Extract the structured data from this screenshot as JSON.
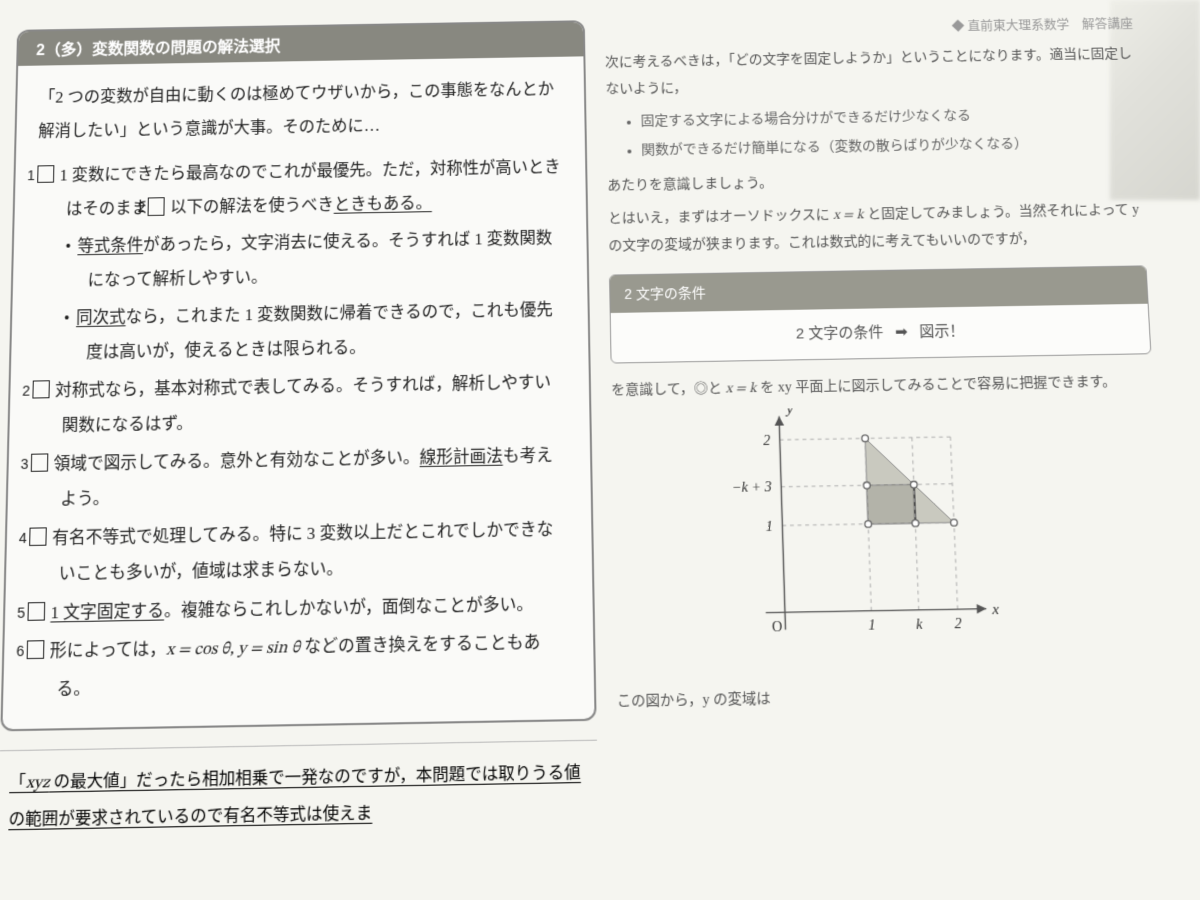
{
  "left": {
    "header": "2（多）変数関数の問題の解法選択",
    "lead1": "「2 つの変数が自由に動くのは極めてウザいから，この事態をなんとか解消したい」という意識が大事。そのために…",
    "items": [
      {
        "num": "1",
        "text_a": "1 変数にできたら最高なのでこれが最優先。ただ，対称性が高いときはそのまま",
        "text_b": "以下の解法を使うべきときもある。",
        "ref": "2",
        "ul_end": "ときもある。"
      },
      {
        "sub": true,
        "ul": "等式条件",
        "rest": "があったら，文字消去に使える。そうすれば 1 変数関数になって解析しやすい。"
      },
      {
        "sub": true,
        "ul": "同次式",
        "rest": "なら，これまた 1 変数関数に帰着できるので，これも優先度は高いが，使えるときは限られる。"
      },
      {
        "num": "2",
        "text": "対称式なら，基本対称式で表してみる。そうすれば，解析しやすい関数になるはず。"
      },
      {
        "num": "3",
        "text_a": "領域で図示してみる。意外と有効なことが多い。",
        "ul_tail": "線形計画法",
        "text_b": "も考えよう。"
      },
      {
        "num": "4",
        "text": "有名不等式で処理してみる。特に 3 変数以上だとこれでしかできないことも多いが，値域は求まらない。"
      },
      {
        "num": "5",
        "ul_head": "1 文字固定する",
        "text": "。複雑ならこれしかないが，面倒なことが多い。"
      },
      {
        "num": "6",
        "text_a": "形によっては，",
        "math": "x = cos θ,  y = sin θ",
        "text_b": " などの置き換えをすることもある。"
      }
    ],
    "below": "「xyz の最大値」だったら相加相乗で一発なのですが，本問題では取りうる値の範囲が要求されているので有名不等式は使えま"
  },
  "right": {
    "header_small": "◆ 直前東大理系数学　解答講座",
    "p1": "次に考えるべきは，「どの文字を固定しようか」ということになります。適当に固定しないように，",
    "bullets": [
      "固定する文字による場合分けができるだけ少なくなる",
      "関数ができるだけ簡単になる（変数の散らばりが少なくなる）"
    ],
    "p2": "あたりを意識しましょう。",
    "p3_a": "とはいえ，まずはオーソドックスに ",
    "p3_math": "x = k",
    "p3_b": " と固定してみましょう。当然それによって y の文字の変域が狭まります。これは数式的に考えてもいいのですが，",
    "mini_head": "2 文字の条件",
    "mini_body_a": "2 文字の条件",
    "mini_body_arrow": "➡",
    "mini_body_b": "図示！",
    "p4_a": "を意識して，◎と ",
    "p4_math": "x = k",
    "p4_b": " を xy 平面上に図示してみることで容易に把握できます。",
    "p5": "この図から，y の変域は"
  },
  "chart": {
    "type": "diagram",
    "bg": "#fafaf8",
    "axis_color": "#555555",
    "dash_color": "#aaaaaa",
    "fill1": "#c9c9bf",
    "fill2": "#b3b3a9",
    "ox": 60,
    "oy": 210,
    "scale": 90,
    "x_ticks": [
      {
        "v": 1,
        "label": "1"
      },
      {
        "v": 1.55,
        "label": "k"
      },
      {
        "v": 2,
        "label": "2"
      }
    ],
    "y_ticks": [
      {
        "v": 1,
        "label": "1"
      },
      {
        "v": 1.45,
        "label": "−k + 3"
      },
      {
        "v": 2,
        "label": "2"
      }
    ],
    "axis_labels": {
      "x": "x",
      "y": "y",
      "o": "O"
    },
    "marker_r": 3.5,
    "marker_stroke": "#666666"
  }
}
